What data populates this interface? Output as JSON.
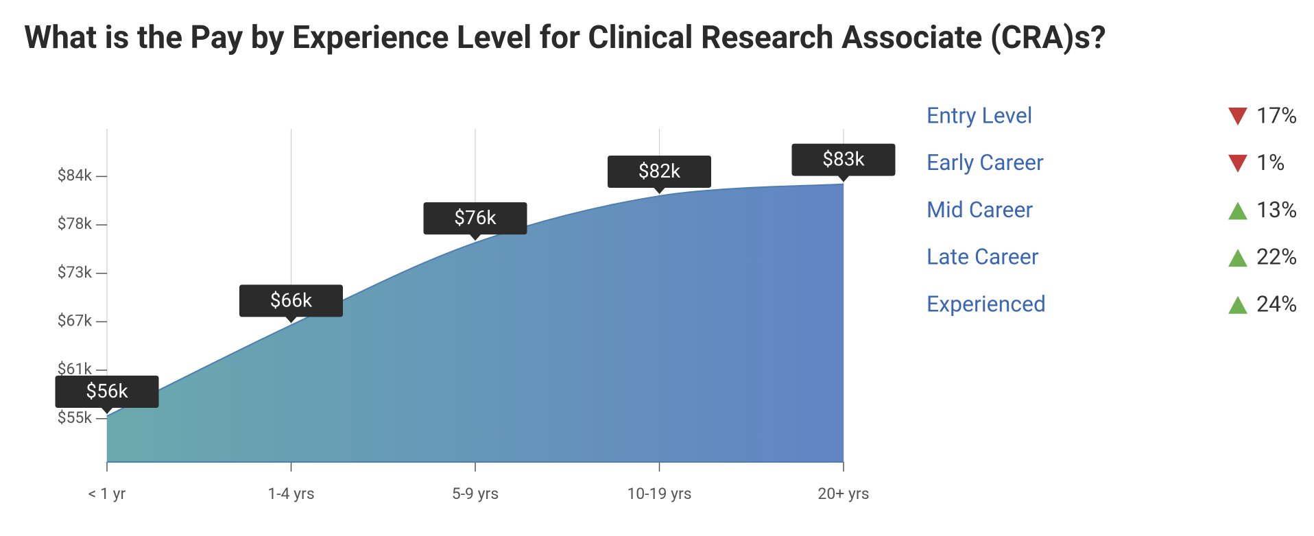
{
  "chart_data": {
    "type": "area",
    "title": "What is the Pay by Experience Level for Clinical Research Associate (CRA)s?",
    "categories": [
      "< 1 yr",
      "1-4 yrs",
      "5-9 yrs",
      "10-19 yrs",
      "20+ yrs"
    ],
    "values": [
      55700,
      66400,
      76100,
      81600,
      83000
    ],
    "value_labels": [
      "$56k",
      "$66k",
      "$76k",
      "$82k",
      "$83k"
    ],
    "ylim": [
      50300,
      89500
    ],
    "yticks": [
      {
        "value": 55400,
        "label": "$55k"
      },
      {
        "value": 61100,
        "label": "$61k"
      },
      {
        "value": 66800,
        "label": "$67k"
      },
      {
        "value": 72500,
        "label": "$73k"
      },
      {
        "value": 78200,
        "label": "$78k"
      },
      {
        "value": 83900,
        "label": "$84k"
      }
    ],
    "colors": [
      "#6aa9ad",
      "#6284c4"
    ],
    "line_color": "#4b7fb0"
  },
  "legend": {
    "trend_colors": {
      "down": "#c23b3b",
      "up": "#6fb152"
    },
    "rows": [
      {
        "label": "Entry Level",
        "change": "17%",
        "trend": "down"
      },
      {
        "label": "Early Career",
        "change": "1%",
        "trend": "down"
      },
      {
        "label": "Mid Career",
        "change": "13%",
        "trend": "up"
      },
      {
        "label": "Late Career",
        "change": "22%",
        "trend": "up"
      },
      {
        "label": "Experienced",
        "change": "24%",
        "trend": "up"
      }
    ]
  }
}
